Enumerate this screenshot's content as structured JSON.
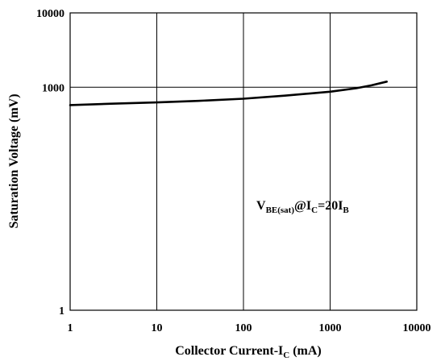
{
  "chart_data": {
    "type": "line",
    "x_scale": "log",
    "y_scale": "log",
    "xlim": [
      1,
      10000
    ],
    "ylim": [
      1,
      10000
    ],
    "x_ticks": [
      "1",
      "10",
      "100",
      "1000",
      "10000"
    ],
    "y_ticks": [
      "1",
      "1000",
      "10000"
    ],
    "y_gridlines": [
      1000
    ],
    "x_gridlines": [
      10,
      100,
      1000
    ],
    "grid": true,
    "xlabel_main": "Collector Current-I",
    "xlabel_sub": "C",
    "xlabel_tail": " (mA)",
    "ylabel": "Saturation Voltage (mV)",
    "annotation": {
      "v": "V",
      "v_sub": "BE(sat)",
      "at": "@I",
      "i_sub": "C",
      "eq": "=20I",
      "b_sub": "B"
    },
    "series": [
      {
        "x": [
          1,
          3,
          10,
          30,
          100,
          300,
          1000,
          2000,
          3000,
          4500
        ],
        "y": [
          575,
          600,
          625,
          655,
          700,
          770,
          870,
          970,
          1060,
          1190
        ]
      }
    ]
  }
}
